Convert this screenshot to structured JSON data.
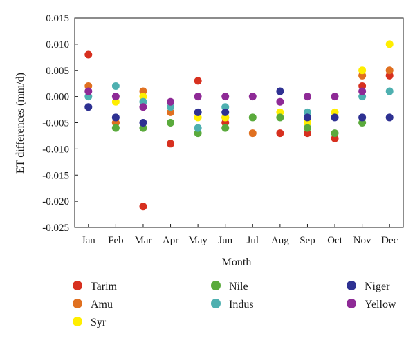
{
  "chart_data": {
    "type": "scatter",
    "xlabel": "Month",
    "ylabel": "ET differences (mm/d)",
    "categories": [
      "Jan",
      "Feb",
      "Mar",
      "Apr",
      "May",
      "Jun",
      "Jul",
      "Aug",
      "Sep",
      "Oct",
      "Nov",
      "Dec"
    ],
    "ylim": [
      -0.025,
      0.015
    ],
    "yticks": [
      "0.015",
      "0.010",
      "0.005",
      "0.000",
      "-0.005",
      "-0.010",
      "-0.015",
      "-0.020",
      "-0.025"
    ],
    "ytick_values": [
      0.015,
      0.01,
      0.005,
      0.0,
      -0.005,
      -0.01,
      -0.015,
      -0.02,
      -0.025
    ],
    "grid": false,
    "legend_position": "bottom",
    "series": [
      {
        "name": "Tarim",
        "color": "#d7301f",
        "values": [
          0.008,
          -0.005,
          -0.021,
          -0.009,
          0.003,
          -0.005,
          null,
          -0.007,
          -0.007,
          -0.008,
          0.002,
          0.004
        ]
      },
      {
        "name": "Amu",
        "color": "#e07020",
        "values": [
          0.002,
          -0.005,
          0.001,
          -0.003,
          null,
          -0.004,
          -0.007,
          null,
          -0.005,
          null,
          0.004,
          0.005
        ]
      },
      {
        "name": "Syr",
        "color": "#ffee00",
        "values": [
          null,
          -0.001,
          0.0,
          null,
          -0.004,
          -0.004,
          null,
          -0.003,
          -0.005,
          -0.003,
          0.005,
          0.01
        ]
      },
      {
        "name": "Nile",
        "color": "#5aaa3c",
        "values": [
          null,
          -0.006,
          -0.006,
          -0.005,
          -0.007,
          -0.006,
          -0.004,
          -0.004,
          -0.006,
          -0.007,
          -0.005,
          null
        ]
      },
      {
        "name": "Indus",
        "color": "#4eb0b0",
        "values": [
          0.0,
          0.002,
          -0.001,
          -0.002,
          -0.006,
          -0.002,
          null,
          null,
          -0.003,
          null,
          0.0,
          0.001
        ]
      },
      {
        "name": "Niger",
        "color": "#2e3192",
        "values": [
          -0.002,
          -0.004,
          -0.005,
          null,
          -0.003,
          -0.003,
          null,
          0.001,
          -0.004,
          -0.004,
          -0.004,
          -0.004
        ]
      },
      {
        "name": "Yellow",
        "color": "#8e2a96",
        "values": [
          0.001,
          0.0,
          -0.002,
          -0.001,
          0.0,
          0.0,
          0.0,
          -0.001,
          0.0,
          0.0,
          0.001,
          null
        ]
      }
    ]
  }
}
